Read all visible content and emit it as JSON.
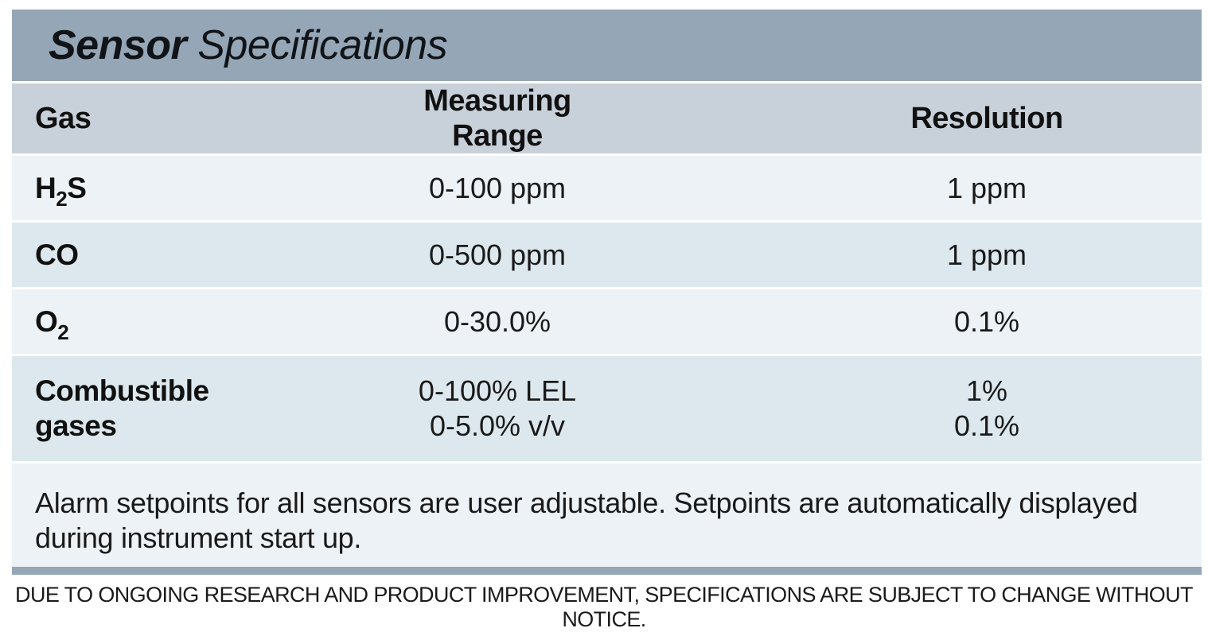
{
  "title": {
    "bold": "Sensor",
    "light": "Specifications"
  },
  "table": {
    "headers": {
      "gas": "Gas",
      "range": "Measuring Range",
      "resolution": "Resolution"
    },
    "rows": [
      {
        "gas": "H",
        "gas_sub": "2",
        "gas_suffix": "S",
        "range": [
          "0-100 ppm"
        ],
        "resolution": [
          "1 ppm"
        ]
      },
      {
        "gas": "CO",
        "gas_sub": "",
        "gas_suffix": "",
        "range": [
          "0-500 ppm"
        ],
        "resolution": [
          "1 ppm"
        ]
      },
      {
        "gas": "O",
        "gas_sub": "2",
        "gas_suffix": "",
        "range": [
          "0-30.0%"
        ],
        "resolution": [
          "0.1%"
        ]
      },
      {
        "gas_lines": [
          "Combustible",
          "gases"
        ],
        "range": [
          "0-100% LEL",
          "0-5.0% v/v"
        ],
        "resolution": [
          "1%",
          "0.1%"
        ]
      }
    ],
    "note": "Alarm setpoints for all sensors are user adjustable. Setpoints are automatically displayed during instrument start up."
  },
  "disclaimer": "DUE TO ONGOING RESEARCH AND PRODUCT IMPROVEMENT, SPECIFICATIONS ARE SUBJECT TO CHANGE WITHOUT NOTICE.",
  "colors": {
    "title_bar": "#95a6b6",
    "header_row": "#c8d1da",
    "row_light": "#edf2f6",
    "row_blue": "#dce8ee"
  }
}
